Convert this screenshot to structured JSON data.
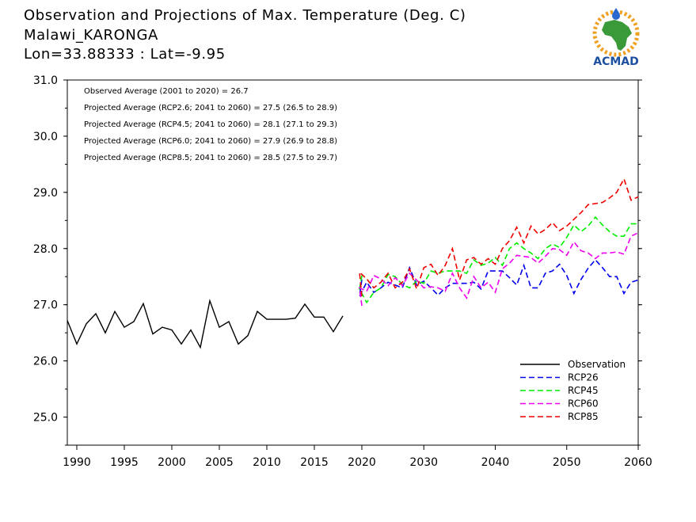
{
  "header": {
    "title_line1": "Observation and Projections of Max. Temperature (Deg. C)",
    "title_line2": "Malawi_KARONGA",
    "title_line3": "Lon=33.88333 : Lat=-9.95"
  },
  "logo": {
    "text": "ACMAD",
    "colors": {
      "africa": "#3a9a3a",
      "sun": "#f0a020",
      "text": "#1d4fa0"
    }
  },
  "chart_data": {
    "type": "line",
    "xlim": [
      1989,
      2060
    ],
    "ylim": [
      24.5,
      31.0
    ],
    "x_ticks": [
      1990,
      1995,
      2000,
      2005,
      2010,
      2015,
      2020,
      2030,
      2040,
      2050,
      2060
    ],
    "y_ticks": [
      25.0,
      26.0,
      27.0,
      28.0,
      29.0,
      30.0,
      31.0
    ],
    "y_tick_labels": [
      "25.0",
      "26.0",
      "27.0",
      "28.0",
      "29.0",
      "30.0",
      "31.0"
    ],
    "annotations": [
      "Observed Average (2001 to 2020) = 26.7",
      "Projected Average (RCP2.6; 2041 to 2060) = 27.5 (26.5 to 28.9)",
      "Projected Average (RCP4.5; 2041 to 2060) = 28.1 (27.1 to 29.3)",
      "Projected Average (RCP6.0; 2041 to 2060) = 27.9 (26.9 to 28.8)",
      "Projected Average (RCP8.5; 2041 to 2060) = 28.5 (27.5 to 29.7)"
    ],
    "legend_position": "bottom-right",
    "series": [
      {
        "name": "Observation",
        "color": "#000000",
        "dash": false,
        "x_start": 1989,
        "values": [
          26.72,
          26.3,
          26.66,
          26.84,
          26.5,
          26.88,
          26.6,
          26.7,
          27.02,
          26.48,
          26.6,
          26.55,
          26.3,
          26.55,
          26.24,
          27.07,
          26.6,
          26.7,
          26.3,
          26.45,
          26.88,
          26.74,
          26.74,
          26.74,
          26.76,
          27.01,
          26.78,
          26.78,
          26.52,
          26.8
        ]
      },
      {
        "name": "RCP26",
        "color": "#0000ee",
        "dash": true,
        "x_start": 2020,
        "values": [
          27.45,
          27.15,
          27.4,
          27.22,
          27.3,
          27.4,
          27.35,
          27.3,
          27.66,
          27.35,
          27.42,
          27.3,
          27.17,
          27.3,
          27.38,
          27.38,
          27.38,
          27.4,
          27.28,
          27.6,
          27.6,
          27.6,
          27.48,
          27.35,
          27.7,
          27.3,
          27.3,
          27.56,
          27.6,
          27.72,
          27.52,
          27.2,
          27.45,
          27.65,
          27.8,
          27.66,
          27.5,
          27.5,
          27.2,
          27.4,
          27.44
        ]
      },
      {
        "name": "RCP45",
        "color": "#00ee00",
        "dash": true,
        "x_start": 2020,
        "values": [
          27.52,
          27.28,
          27.04,
          27.22,
          27.3,
          27.54,
          27.5,
          27.36,
          27.3,
          27.42,
          27.38,
          27.6,
          27.56,
          27.6,
          27.6,
          27.6,
          27.56,
          27.8,
          27.7,
          27.74,
          27.84,
          27.7,
          28.0,
          28.1,
          28.0,
          27.92,
          27.82,
          28.0,
          28.08,
          28.02,
          28.2,
          28.42,
          28.3,
          28.4,
          28.56,
          28.42,
          28.3,
          28.22,
          28.22,
          28.44,
          28.44
        ]
      },
      {
        "name": "RCP60",
        "color": "#ee00ee",
        "dash": true,
        "x_start": 2020,
        "values": [
          26.98,
          27.3,
          27.24,
          27.52,
          27.46,
          27.34,
          27.48,
          27.34,
          27.56,
          27.44,
          27.3,
          27.32,
          27.3,
          27.24,
          27.56,
          27.3,
          27.12,
          27.5,
          27.3,
          27.4,
          27.22,
          27.64,
          27.74,
          27.88,
          27.86,
          27.84,
          27.74,
          27.86,
          28.0,
          27.98,
          27.88,
          28.12,
          27.96,
          27.92,
          27.82,
          27.92,
          27.92,
          27.94,
          27.9,
          28.22,
          28.28
        ]
      },
      {
        "name": "RCP85",
        "color": "#ee0000",
        "dash": true,
        "x_start": 2020,
        "values": [
          27.15,
          27.58,
          27.46,
          27.3,
          27.4,
          27.56,
          27.3,
          27.4,
          27.64,
          27.28,
          27.66,
          27.72,
          27.52,
          27.7,
          28.0,
          27.44,
          27.8,
          27.84,
          27.72,
          27.82,
          27.72,
          28.0,
          28.14,
          28.38,
          28.1,
          28.4,
          28.26,
          28.34,
          28.46,
          28.32,
          28.4,
          28.52,
          28.64,
          28.78,
          28.8,
          28.82,
          28.9,
          29.0,
          29.24,
          28.86,
          28.92
        ]
      }
    ]
  }
}
